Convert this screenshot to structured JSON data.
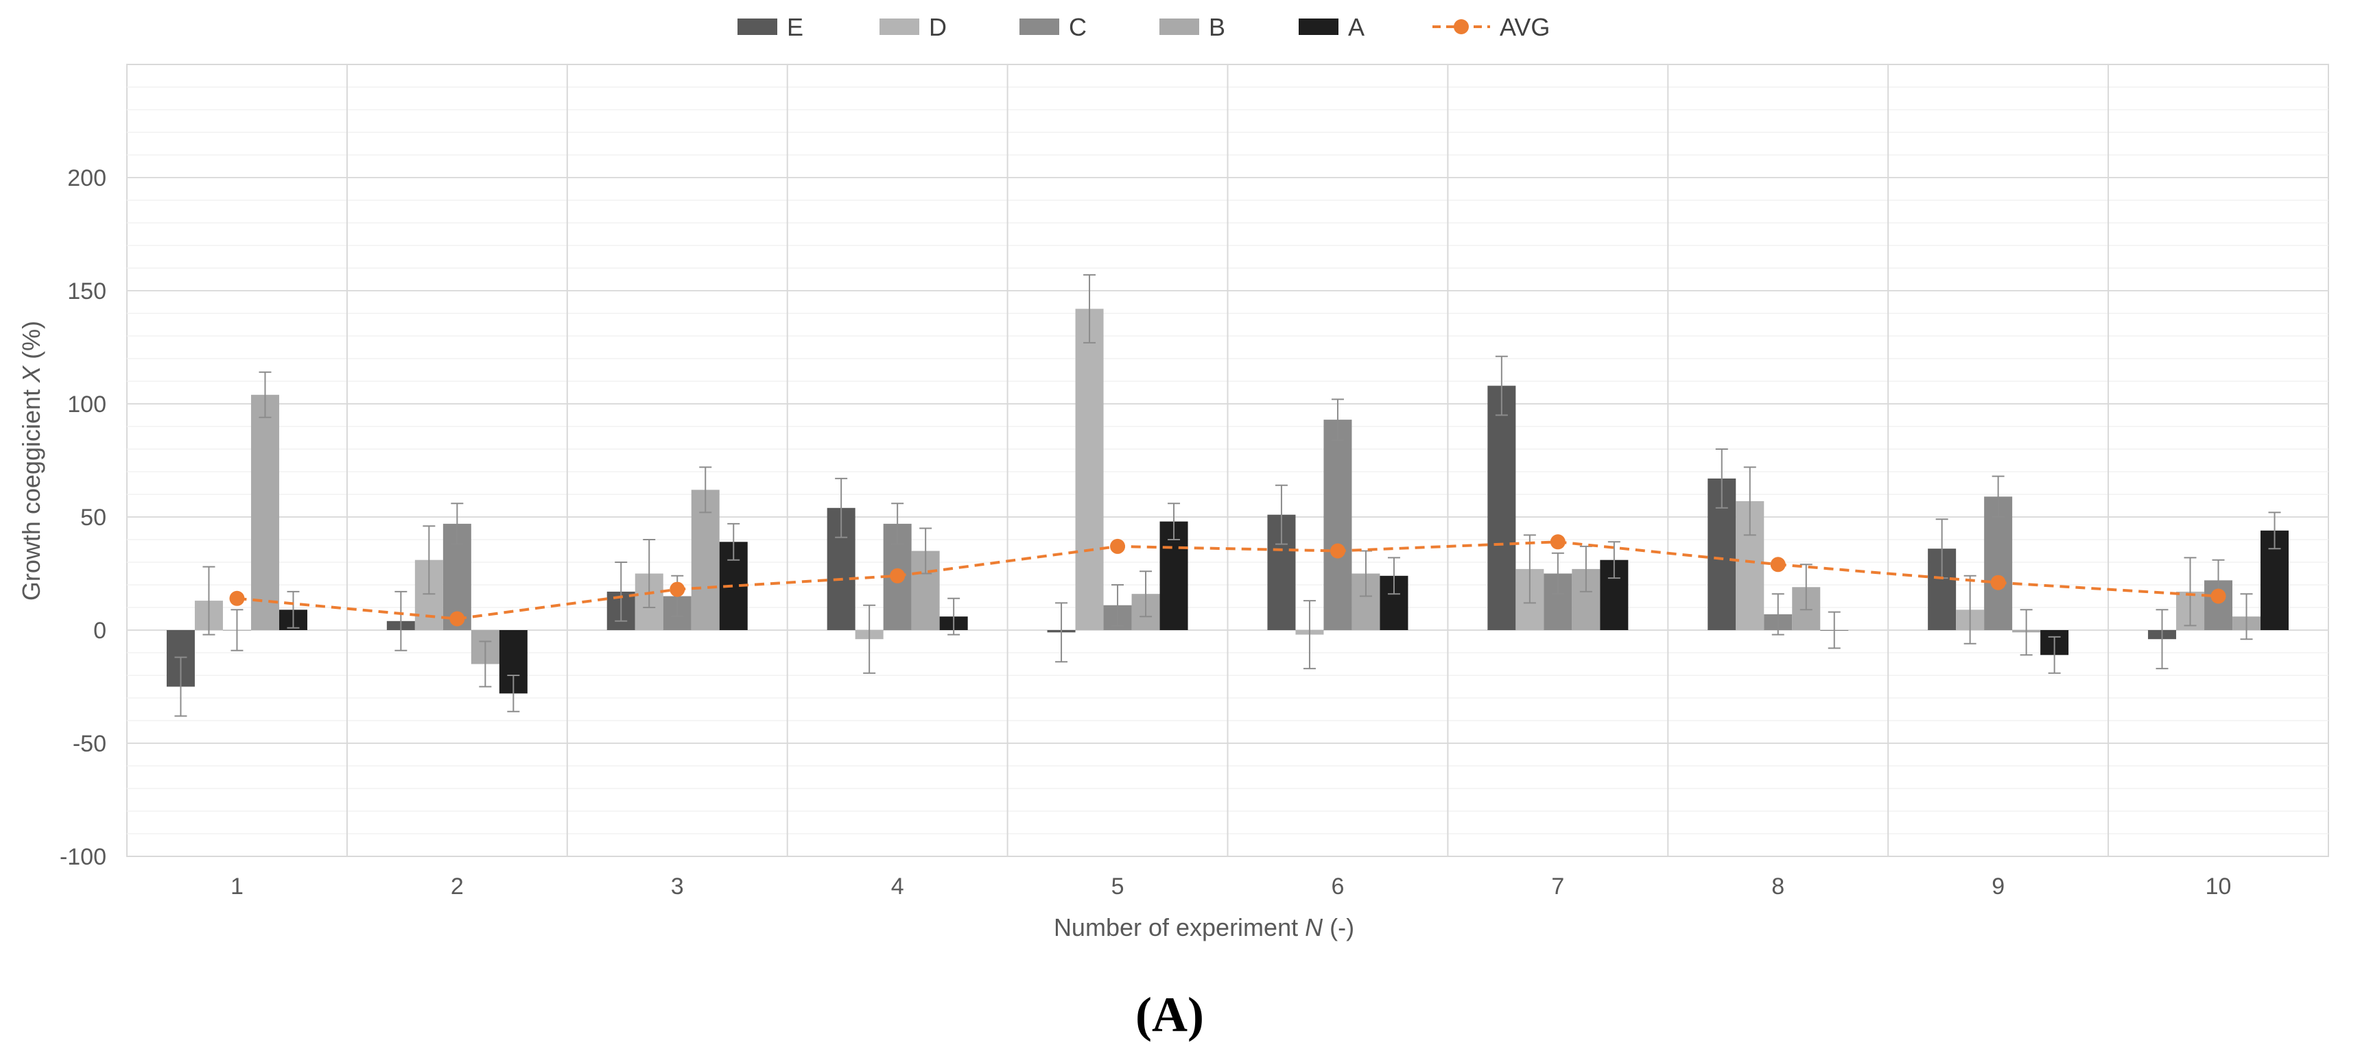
{
  "chart_data": {
    "type": "bar",
    "categories": [
      "1",
      "2",
      "3",
      "4",
      "5",
      "6",
      "7",
      "8",
      "9",
      "10"
    ],
    "series": [
      {
        "name": "E",
        "color": "#595959",
        "values": [
          -25,
          4,
          17,
          54,
          -1,
          51,
          108,
          67,
          36,
          -4
        ],
        "errors": [
          13,
          13,
          13,
          13,
          13,
          13,
          13,
          13,
          13,
          13
        ]
      },
      {
        "name": "D",
        "color": "#b4b4b4",
        "values": [
          13,
          31,
          25,
          -4,
          142,
          -2,
          27,
          57,
          9,
          17
        ],
        "errors": [
          15,
          15,
          15,
          15,
          15,
          15,
          15,
          15,
          15,
          15
        ]
      },
      {
        "name": "C",
        "color": "#8a8a8a",
        "values": [
          0,
          47,
          15,
          47,
          11,
          93,
          25,
          7,
          59,
          22
        ],
        "errors": [
          9,
          9,
          9,
          9,
          9,
          9,
          9,
          9,
          9,
          9
        ]
      },
      {
        "name": "B",
        "color": "#a9a9a9",
        "values": [
          104,
          -15,
          62,
          35,
          16,
          25,
          27,
          19,
          -1,
          6
        ],
        "errors": [
          10,
          10,
          10,
          10,
          10,
          10,
          10,
          10,
          10,
          10
        ]
      },
      {
        "name": "A",
        "color": "#1e1e1e",
        "values": [
          9,
          -28,
          39,
          6,
          48,
          24,
          31,
          0,
          -11,
          44
        ],
        "errors": [
          8,
          8,
          8,
          8,
          8,
          8,
          8,
          8,
          8,
          8
        ]
      }
    ],
    "avg": {
      "name": "AVG",
      "color": "#ed7d31",
      "values": [
        14,
        5,
        18,
        24,
        37,
        35,
        39,
        29,
        21,
        15
      ]
    },
    "legend": [
      "E",
      "D",
      "C",
      "B",
      "A",
      "AVG"
    ],
    "ylim": [
      -100,
      250
    ],
    "yticks": [
      -100,
      -50,
      0,
      50,
      100,
      150,
      200
    ],
    "ytick_labels": [
      "-100",
      "-50",
      "0",
      "50",
      "100",
      "150",
      "200"
    ],
    "ylabel_pre": "Growth coeggicient ",
    "ylabel_var": "X",
    "ylabel_post": " (%)",
    "xlabel_pre": "Number of experiment ",
    "xlabel_var": "N",
    "xlabel_post": " (-)",
    "panel_label": "(A)",
    "grid": true,
    "legend_position": "top-center"
  }
}
